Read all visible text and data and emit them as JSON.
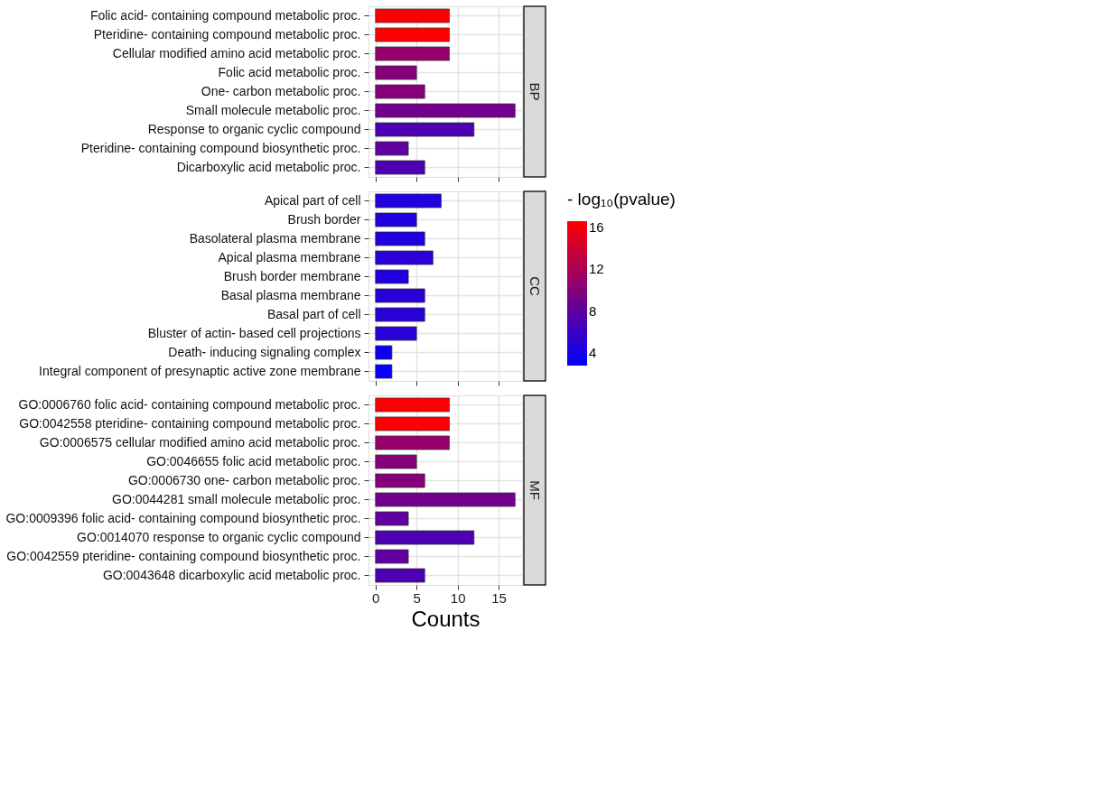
{
  "chart_data": [
    {
      "type": "bar",
      "orientation": "horizontal",
      "title": "BP",
      "categories": [
        "Folic acid- containing compound metabolic proc.",
        "Pteridine- containing compound metabolic proc.",
        "Cellular modified amino acid metabolic proc.",
        "Folic acid metabolic proc.",
        "One- carbon metabolic proc.",
        "Small molecule metabolic proc.",
        "Response to organic cyclic compound",
        "Pteridine- containing compound biosynthetic proc.",
        "Dicarboxylic acid metabolic proc."
      ],
      "values": [
        9,
        9,
        9,
        5,
        6,
        17,
        12,
        4,
        6
      ],
      "colors": [
        "#fe0002",
        "#fe0002",
        "#970068",
        "#85007a",
        "#85007a",
        "#73008d",
        "#4d00b1",
        "#60009f",
        "#4d00b1"
      ],
      "xlim": [
        -0.85,
        17.85
      ],
      "xticks": [
        0,
        5,
        10,
        15
      ],
      "tick_labels": "y",
      "grid": true
    },
    {
      "type": "bar",
      "orientation": "horizontal",
      "title": "CC",
      "categories": [
        "Apical part of cell",
        "Brush border",
        "Basolateral plasma membrane",
        "Apical plasma membrane",
        "Brush border membrane",
        "Basal plasma membrane",
        "Basal part of cell",
        "Bluster of actin- based cell projections",
        "Death- inducing signaling complex",
        "Integral component of presynaptic active zone membrane"
      ],
      "values": [
        8,
        5,
        6,
        7,
        4,
        6,
        6,
        5,
        2,
        2
      ],
      "cvalues": [
        4.5,
        4.5,
        4.5,
        5,
        4.5,
        5,
        5,
        5,
        3.5,
        3
      ],
      "clabel": "- log₁₀(pvalue)",
      "clim": [
        2.8,
        16.6
      ],
      "cticks": [
        4,
        8,
        12,
        16
      ],
      "xlim": [
        -0.85,
        17.85
      ],
      "xticks": [
        0,
        5,
        10,
        15
      ],
      "tick_labels": "y",
      "grid": true
    },
    {
      "type": "bar",
      "orientation": "horizontal",
      "title": "MF",
      "categories": [
        "GO:0006760 folic acid- containing compound metabolic proc.",
        "GO:0042558 pteridine- containing compound metabolic proc.",
        "GO:0006575 cellular modified amino acid metabolic proc.",
        "GO:0046655 folic acid metabolic proc.",
        "GO:0006730 one- carbon metabolic proc.",
        "GO:0044281 small molecule metabolic proc.",
        "GO:0009396 folic acid- containing compound biosynthetic proc.",
        "GO:0014070 response to organic cyclic compound",
        "GO:0042559 pteridine- containing compound biosynthetic proc.",
        "GO:0043648 dicarboxylic acid metabolic proc."
      ],
      "values": [
        9,
        9,
        9,
        5,
        6,
        17,
        4,
        12,
        4,
        6
      ],
      "colors": [
        "#fe0002",
        "#fe0002",
        "#970068",
        "#85007a",
        "#85007a",
        "#73008d",
        "#60009f",
        "#4d00b1",
        "#60009f",
        "#4d00b1"
      ],
      "xlabel": "Counts",
      "xlim": [
        -0.85,
        17.85
      ],
      "xticks": [
        0,
        5,
        10,
        15
      ],
      "grid": true
    }
  ]
}
